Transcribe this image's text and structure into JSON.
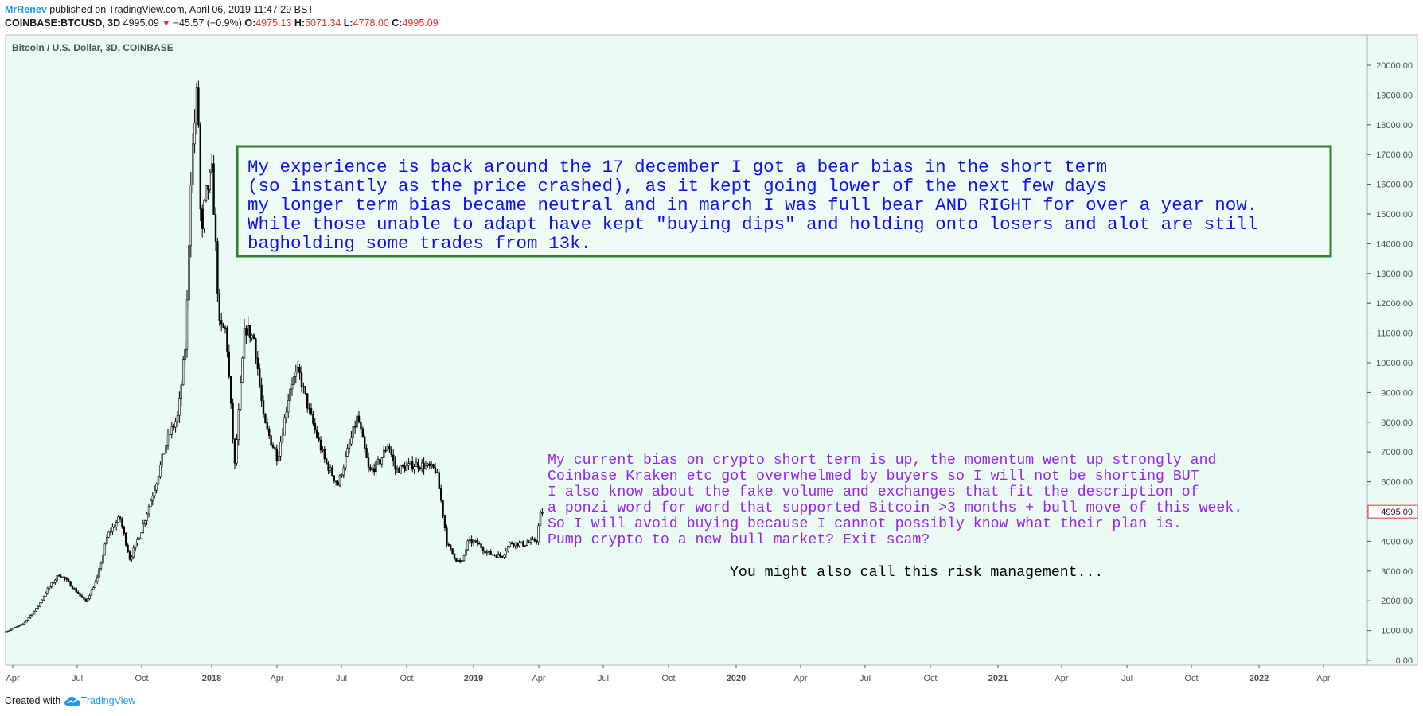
{
  "header": {
    "author": "MrRenev",
    "published": " published on TradingView.com, April 06, 2019 11:47:29 BST",
    "symbol": "COINBASE:BTCUSD, 3D",
    "last": "4995.09",
    "change": "−45.57 (−0.9%)",
    "o_label": "O:",
    "o_value": "4975.13",
    "h_label": "H:",
    "h_value": "5071.34",
    "l_label": "L:",
    "l_value": "4778.00",
    "c_label": "C:",
    "c_value": "4995.09",
    "arrow_icon": "triangle-down-icon"
  },
  "footer": {
    "created_with": "Created with",
    "brand": "TradingView",
    "logo_icon": "tradingview-cloud-icon"
  },
  "colors": {
    "background": "#e9fbf3",
    "candle": "#000000",
    "box_border": "#2e7d32",
    "blue_text": "#1010ee",
    "purple_text": "#9a22ee",
    "price_tag_border": "#e53935"
  },
  "chart_data": {
    "type": "candlestick",
    "title": "Bitcoin / U.S. Dollar, 3D, COINBASE",
    "ylim": [
      0,
      20000
    ],
    "y_ticks": [
      "0.00",
      "1000.00",
      "2000.00",
      "3000.00",
      "4000.00",
      "5000.00",
      "6000.00",
      "7000.00",
      "8000.00",
      "9000.00",
      "10000.00",
      "11000.00",
      "12000.00",
      "13000.00",
      "14000.00",
      "15000.00",
      "16000.00",
      "17000.00",
      "18000.00",
      "19000.00",
      "20000.00"
    ],
    "x_ticks": [
      "Apr",
      "Jul",
      "Oct",
      "2018",
      "Apr",
      "Jul",
      "Oct",
      "2019",
      "Apr",
      "Jul",
      "Oct",
      "2020",
      "Apr",
      "Jul",
      "Oct",
      "2021",
      "Apr",
      "Jul",
      "Oct",
      "2022",
      "Apr"
    ],
    "x_range": [
      "2017-03-28",
      "2022-05-13"
    ],
    "last_price_label": "4995.09",
    "price_path": [
      [
        "2017-03-28",
        960
      ],
      [
        "2017-04-20",
        1200
      ],
      [
        "2017-05-10",
        1750
      ],
      [
        "2017-05-25",
        2400
      ],
      [
        "2017-06-10",
        2900
      ],
      [
        "2017-06-25",
        2550
      ],
      [
        "2017-07-16",
        1950
      ],
      [
        "2017-08-01",
        2750
      ],
      [
        "2017-08-15",
        4200
      ],
      [
        "2017-09-01",
        4800
      ],
      [
        "2017-09-15",
        3400
      ],
      [
        "2017-10-01",
        4400
      ],
      [
        "2017-10-20",
        5900
      ],
      [
        "2017-11-05",
        7400
      ],
      [
        "2017-11-20",
        8200
      ],
      [
        "2017-12-01",
        10800
      ],
      [
        "2017-12-08",
        16500
      ],
      [
        "2017-12-17",
        19400
      ],
      [
        "2017-12-22",
        13800
      ],
      [
        "2017-12-27",
        15500
      ],
      [
        "2018-01-06",
        16400
      ],
      [
        "2018-01-16",
        11200
      ],
      [
        "2018-01-25",
        11100
      ],
      [
        "2018-02-06",
        6500
      ],
      [
        "2018-02-20",
        11200
      ],
      [
        "2018-03-05",
        10800
      ],
      [
        "2018-03-18",
        8000
      ],
      [
        "2018-04-06",
        6800
      ],
      [
        "2018-04-24",
        9300
      ],
      [
        "2018-05-05",
        9700
      ],
      [
        "2018-05-20",
        8300
      ],
      [
        "2018-06-10",
        6700
      ],
      [
        "2018-06-28",
        5900
      ],
      [
        "2018-07-25",
        8200
      ],
      [
        "2018-08-10",
        6300
      ],
      [
        "2018-08-25",
        6700
      ],
      [
        "2018-09-05",
        7300
      ],
      [
        "2018-09-15",
        6400
      ],
      [
        "2018-10-15",
        6600
      ],
      [
        "2018-11-10",
        6400
      ],
      [
        "2018-11-19",
        5000
      ],
      [
        "2018-11-25",
        3900
      ],
      [
        "2018-12-07",
        3400
      ],
      [
        "2018-12-15",
        3250
      ],
      [
        "2018-12-24",
        4000
      ],
      [
        "2019-01-05",
        3950
      ],
      [
        "2019-01-20",
        3600
      ],
      [
        "2019-02-08",
        3500
      ],
      [
        "2019-02-20",
        3950
      ],
      [
        "2019-03-10",
        3900
      ],
      [
        "2019-03-28",
        4050
      ],
      [
        "2019-04-02",
        4900
      ],
      [
        "2019-04-06",
        4995
      ]
    ],
    "annotations": {
      "box_lines": [
        "My experience is back around the 17 december I got a bear bias in the short term",
        "(so instantly as the price crashed), as it kept going lower of the next few days",
        "my longer term bias became neutral and in march I was full bear AND RIGHT for over a year now.",
        "While those unable to adapt have kept \"buying dips\" and holding onto losers and alot are still",
        "bagholding some trades from 13k."
      ],
      "purple_lines": [
        "My current bias on crypto short term is up, the momentum went up strongly and",
        "Coinbase Kraken etc got overwhelmed by buyers so I will not be shorting BUT",
        "I also know about the fake volume and exchanges that fit the description of",
        "a ponzi word for word that supported Bitcoin >3 months + bull move of this week.",
        "So I will avoid buying because I cannot possibly know what their plan is.",
        "Pump crypto to a new bull market? Exit scam?"
      ],
      "black_line": "You might also call this risk management..."
    }
  }
}
